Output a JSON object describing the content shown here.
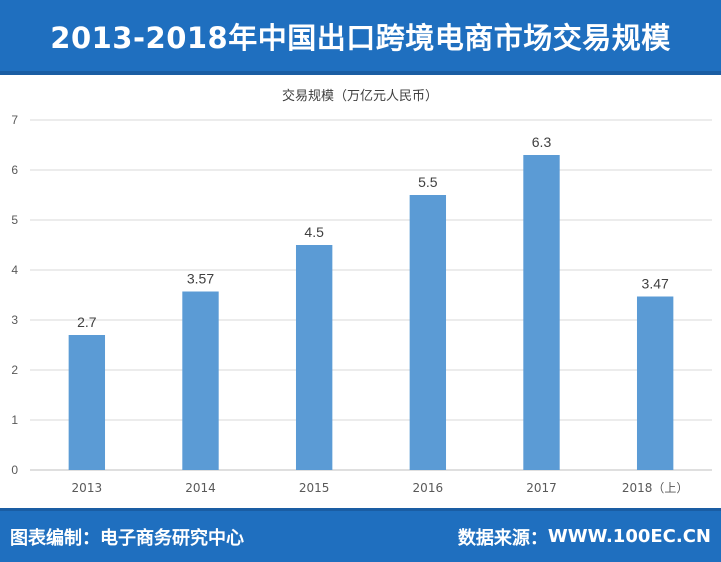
{
  "header": {
    "title": "2013-2018年中国出口跨境电商市场交易规模"
  },
  "footer": {
    "compiler_label": "图表编制：",
    "compiler_value": "电子商务研究中心",
    "source_label": "数据来源：",
    "source_value": "WWW.100EC.CN"
  },
  "colors": {
    "banner": "#1f6fbf",
    "bar": "#5b9bd5",
    "grid": "#d9d9d9"
  },
  "chart_data": {
    "type": "bar",
    "title": "交易规模（万亿元人民币）",
    "xlabel": "",
    "ylabel": "",
    "categories": [
      "2013",
      "2014",
      "2015",
      "2016",
      "2017",
      "2018（上）"
    ],
    "values": [
      2.7,
      3.57,
      4.5,
      5.5,
      6.3,
      3.47
    ],
    "value_labels": [
      "2.7",
      "3.57",
      "4.5",
      "5.5",
      "6.3",
      "3.47"
    ],
    "ylim": [
      0,
      7
    ],
    "yticks": [
      "0",
      "1",
      "2",
      "3",
      "4",
      "5",
      "6",
      "7"
    ],
    "grid": true
  }
}
